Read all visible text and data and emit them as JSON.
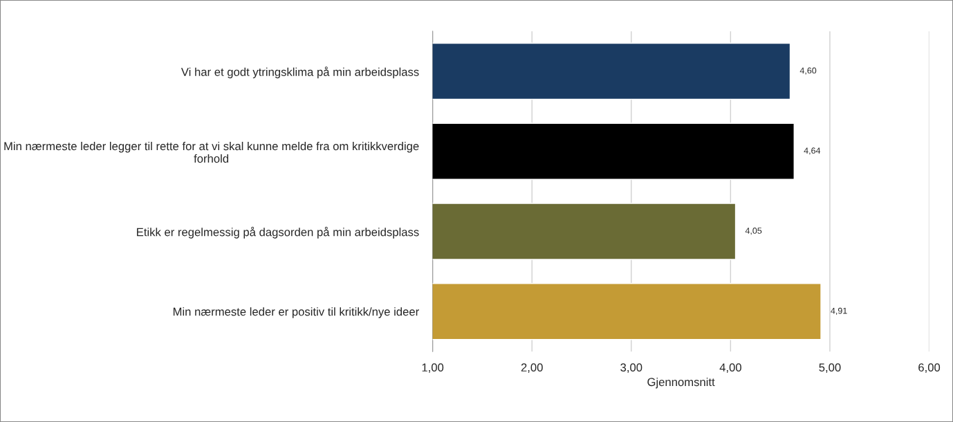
{
  "chart_data": {
    "type": "bar",
    "orientation": "horizontal",
    "xlabel": "Gjennomsnitt",
    "categories": [
      "Vi har et godt ytringsklima på min arbeidsplass",
      "Min nærmeste leder legger til rette for at vi skal kunne melde fra om kritikkverdige forhold",
      "Etikk er regelmessig på dagsorden på min arbeidsplass",
      "Min nærmeste leder er positiv til kritikk/nye ideer"
    ],
    "values": [
      4.6,
      4.64,
      4.05,
      4.91
    ],
    "value_labels": [
      "4,60",
      "4,64",
      "4,05",
      "4,91"
    ],
    "colors": [
      "#1a3b62",
      "#000000",
      "#6a6b35",
      "#c49b35"
    ],
    "xlim": [
      1,
      6
    ],
    "xticks": [
      {
        "value": 1,
        "label": "1,00"
      },
      {
        "value": 2,
        "label": "2,00"
      },
      {
        "value": 3,
        "label": "3,00"
      },
      {
        "value": 4,
        "label": "4,00"
      },
      {
        "value": 5,
        "label": "5,00"
      },
      {
        "value": 6,
        "label": "6,00"
      }
    ],
    "grid": "x",
    "legend": false
  }
}
